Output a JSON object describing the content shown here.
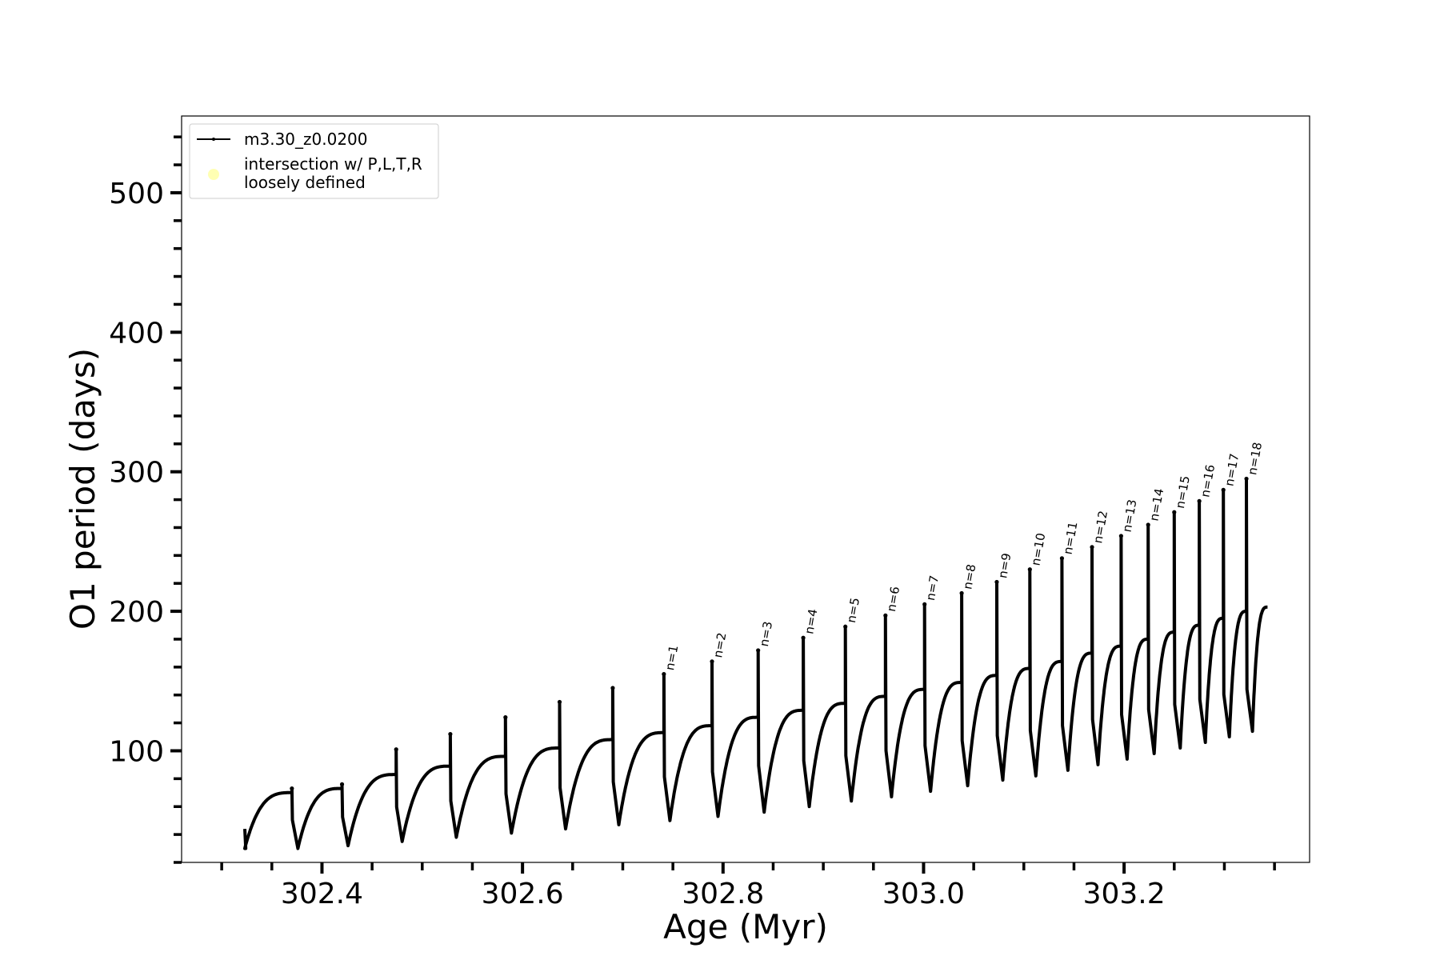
{
  "chart_data": {
    "type": "line",
    "title": "",
    "xlabel": "Age (Myr)",
    "ylabel": "O1 period (days)",
    "xlim": [
      302.26,
      303.385
    ],
    "ylim": [
      20,
      555
    ],
    "x_ticks": [
      "302.4",
      "302.6",
      "302.8",
      "303.0",
      "303.2"
    ],
    "y_ticks": [
      "100",
      "200",
      "300",
      "400",
      "500"
    ],
    "grid": false,
    "legend": {
      "placement": "upper-left",
      "entries": [
        {
          "label": "m3.30_z0.0200",
          "marker": "line",
          "color": "#000000"
        },
        {
          "label": "intersection w/ P,L,T,R\nloosely defined",
          "marker": "dot",
          "color": "#ffffb3"
        }
      ]
    },
    "series": [
      {
        "name": "m3.30_z0.0200",
        "color": "#000000",
        "start": {
          "x": 302.323,
          "y": 44
        },
        "end": {
          "x": 303.343,
          "y": 203
        },
        "pulses": [
          {
            "x": 302.37,
            "spike": 73,
            "pre": 70,
            "min": 30
          },
          {
            "x": 302.42,
            "spike": 76,
            "pre": 73,
            "min": 32
          },
          {
            "x": 302.474,
            "spike": 101,
            "pre": 83,
            "min": 35
          },
          {
            "x": 302.528,
            "spike": 112,
            "pre": 89,
            "min": 38
          },
          {
            "x": 302.583,
            "spike": 124,
            "pre": 96,
            "min": 41
          },
          {
            "x": 302.637,
            "spike": 135,
            "pre": 102,
            "min": 44
          },
          {
            "x": 302.69,
            "spike": 145,
            "pre": 108,
            "min": 47
          },
          {
            "x": 302.741,
            "spike": 155,
            "pre": 113,
            "min": 50,
            "label": "n=1"
          },
          {
            "x": 302.789,
            "spike": 164,
            "pre": 118,
            "min": 53,
            "label": "n=2"
          },
          {
            "x": 302.835,
            "spike": 172,
            "pre": 124,
            "min": 56,
            "label": "n=3"
          },
          {
            "x": 302.88,
            "spike": 181,
            "pre": 129,
            "min": 60,
            "label": "n=4"
          },
          {
            "x": 302.922,
            "spike": 189,
            "pre": 134,
            "min": 64,
            "label": "n=5"
          },
          {
            "x": 302.962,
            "spike": 197,
            "pre": 139,
            "min": 67,
            "label": "n=6"
          },
          {
            "x": 303.001,
            "spike": 205,
            "pre": 144,
            "min": 71,
            "label": "n=7"
          },
          {
            "x": 303.038,
            "spike": 213,
            "pre": 149,
            "min": 75,
            "label": "n=8"
          },
          {
            "x": 303.073,
            "spike": 221,
            "pre": 154,
            "min": 79,
            "label": "n=9"
          },
          {
            "x": 303.106,
            "spike": 230,
            "pre": 159,
            "min": 82,
            "label": "n=10"
          },
          {
            "x": 303.138,
            "spike": 238,
            "pre": 164,
            "min": 86,
            "label": "n=11"
          },
          {
            "x": 303.168,
            "spike": 246,
            "pre": 170,
            "min": 90,
            "label": "n=12"
          },
          {
            "x": 303.197,
            "spike": 254,
            "pre": 175,
            "min": 94,
            "label": "n=13"
          },
          {
            "x": 303.224,
            "spike": 262,
            "pre": 180,
            "min": 98,
            "label": "n=14"
          },
          {
            "x": 303.25,
            "spike": 271,
            "pre": 185,
            "min": 102,
            "label": "n=15"
          },
          {
            "x": 303.275,
            "spike": 279,
            "pre": 190,
            "min": 106,
            "label": "n=16"
          },
          {
            "x": 303.299,
            "spike": 287,
            "pre": 195,
            "min": 110,
            "label": "n=17"
          },
          {
            "x": 303.322,
            "spike": 295,
            "pre": 200,
            "min": 114,
            "label": "n=18"
          }
        ]
      }
    ]
  }
}
